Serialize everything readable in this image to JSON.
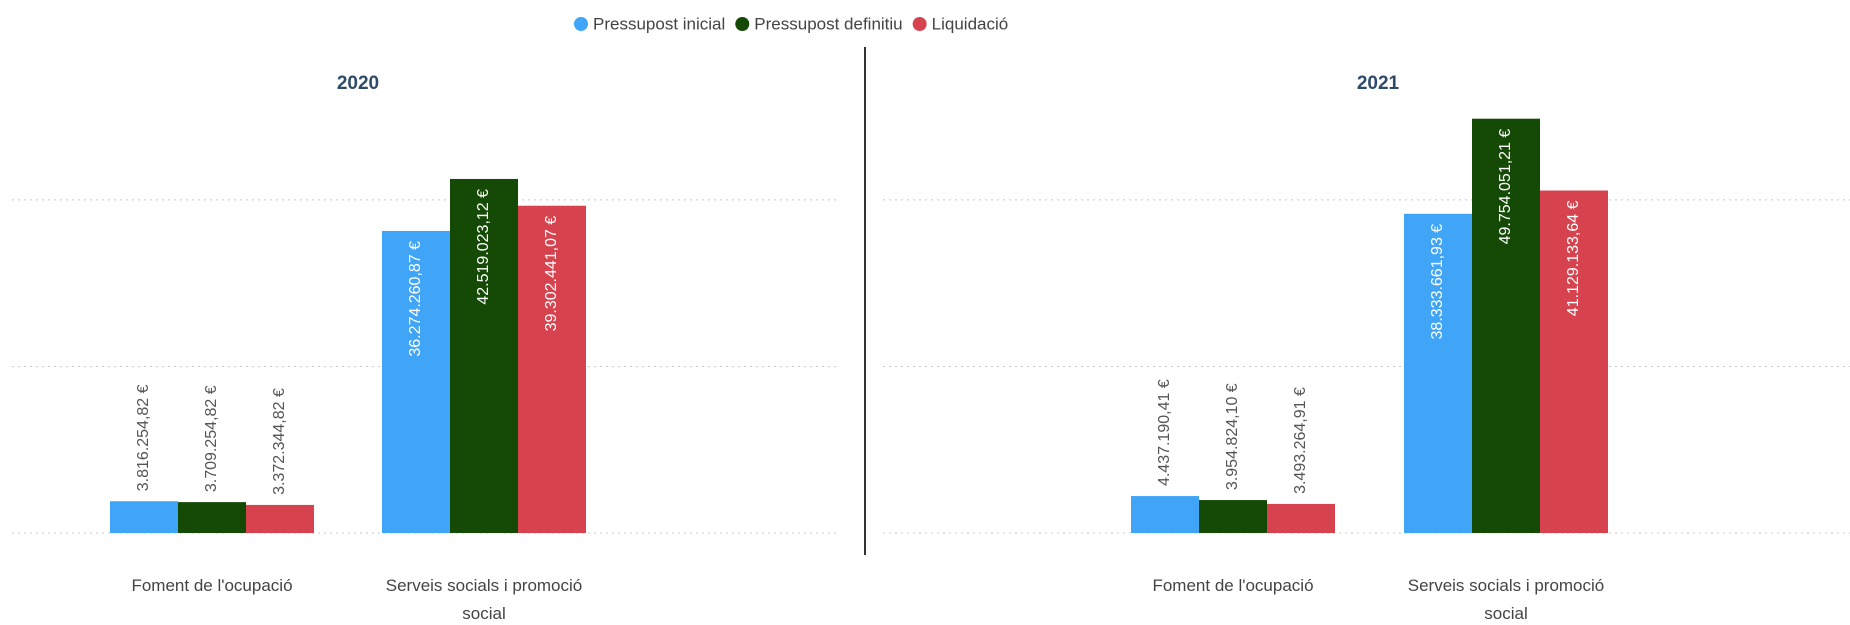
{
  "legend": [
    {
      "name": "Pressupost inicial",
      "color": "#41a5f7"
    },
    {
      "name": "Pressupost definitiu",
      "color": "#154a06"
    },
    {
      "name": "Liquidació",
      "color": "#d6434f"
    }
  ],
  "chart_data": [
    {
      "type": "bar",
      "title": "2020",
      "categories": [
        "Foment de l'ocupació",
        "Serveis socials i promoció social"
      ],
      "series": [
        {
          "values": [
            3816254.82,
            36274260.87
          ],
          "value_labels": [
            "3.816.254,82 €",
            "36.274.260,87 €"
          ]
        },
        {
          "values": [
            3709254.82,
            42519023.12
          ],
          "value_labels": [
            "3.709.254,82 €",
            "42.519.023,12 €"
          ]
        },
        {
          "values": [
            3372344.82,
            39302441.07
          ],
          "value_labels": [
            "3.372.344,82 €",
            "39.302.441,07 €"
          ]
        }
      ],
      "ylim": [
        0,
        52000000
      ],
      "yticks": [
        0,
        20000000,
        40000000
      ],
      "grid": true
    },
    {
      "type": "bar",
      "title": "2021",
      "categories": [
        "Foment de l'ocupació",
        "Serveis socials i promoció social"
      ],
      "series": [
        {
          "values": [
            4437190.41,
            38333661.93
          ],
          "value_labels": [
            "4.437.190,41 €",
            "38.333.661,93 €"
          ]
        },
        {
          "values": [
            3954824.1,
            49754051.21
          ],
          "value_labels": [
            "3.954.824,10 €",
            "49.754.051,21 €"
          ]
        },
        {
          "values": [
            3493264.91,
            41129133.64
          ],
          "value_labels": [
            "3.493.264,91 €",
            "41.129.133,64 €"
          ]
        }
      ],
      "ylim": [
        0,
        52000000
      ],
      "yticks": [
        0,
        20000000,
        40000000
      ],
      "grid": true
    }
  ]
}
